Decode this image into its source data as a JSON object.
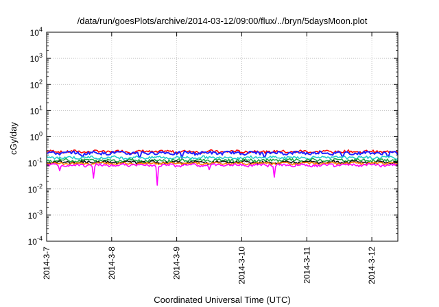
{
  "chart_data": {
    "type": "line",
    "title": "/data/run/goesPlots/archive/2014-03-12/09:00/flux/../bryn/5daysMoon.plot",
    "xlabel": "Coordinated Universal Time (UTC)",
    "ylabel": "cGy/day",
    "y_scale": "log",
    "ylim": [
      0.0001,
      10000
    ],
    "y_ticks": [
      {
        "base": "10",
        "exp": "-4"
      },
      {
        "base": "10",
        "exp": "-3"
      },
      {
        "base": "10",
        "exp": "-2"
      },
      {
        "base": "10",
        "exp": "-1"
      },
      {
        "base": "10",
        "exp": "0"
      },
      {
        "base": "10",
        "exp": "1"
      },
      {
        "base": "10",
        "exp": "2"
      },
      {
        "base": "10",
        "exp": "3"
      },
      {
        "base": "10",
        "exp": "4"
      }
    ],
    "x_ticks": [
      "2014-3-7",
      "2014-3-8",
      "2014-3-9",
      "2014-3-10",
      "2014-3-11",
      "2014-3-12"
    ],
    "xlim_days": [
      0,
      5.4
    ],
    "grid": true,
    "series": [
      {
        "color": "#ff0000",
        "base": 0.27,
        "noise": 0.05,
        "dips": []
      },
      {
        "color": "#1f1fff",
        "base": 0.24,
        "noise": 0.05,
        "dips": [
          [
            0.55,
            0.14
          ],
          [
            1.43,
            0.13
          ],
          [
            2.08,
            0.15
          ],
          [
            3.35,
            0.13
          ],
          [
            4.55,
            0.14
          ],
          [
            5.25,
            0.14
          ]
        ]
      },
      {
        "color": "#22cccc",
        "base": 0.16,
        "noise": 0.03,
        "dips": []
      },
      {
        "color": "#22aa44",
        "base": 0.125,
        "noise": 0.025,
        "dips": []
      },
      {
        "color": "#111111",
        "base": 0.105,
        "noise": 0.02,
        "dips": []
      },
      {
        "color": "#ff7f00",
        "base": 0.095,
        "noise": 0.015,
        "dips": []
      },
      {
        "color": "#ff00ff",
        "base": 0.082,
        "noise": 0.015,
        "dips": [
          [
            0.72,
            0.026
          ],
          [
            1.7,
            0.014
          ],
          [
            3.5,
            0.028
          ],
          [
            0.2,
            0.05
          ],
          [
            2.5,
            0.055
          ]
        ]
      }
    ]
  }
}
